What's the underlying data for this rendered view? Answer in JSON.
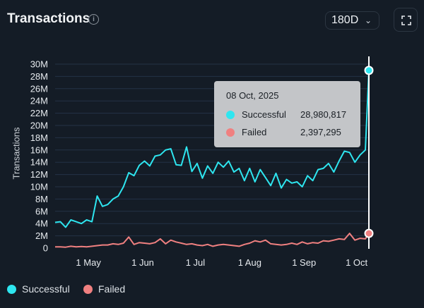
{
  "header": {
    "title": "Transactions",
    "info_icon": "info-icon",
    "range_label": "180D",
    "fullscreen_icon": "fullscreen-icon"
  },
  "tooltip": {
    "date": "08 Oct, 2025",
    "rows": [
      {
        "label": "Successful",
        "value": "28,980,817"
      },
      {
        "label": "Failed",
        "value": "2,397,295"
      }
    ]
  },
  "legend": [
    {
      "label": "Successful",
      "color": "#2ee6f0"
    },
    {
      "label": "Failed",
      "color": "#f08080"
    }
  ],
  "chart_data": {
    "type": "line",
    "title": "Transactions",
    "ylabel": "Transactions",
    "xlabel": "",
    "ylim": [
      0,
      30000000
    ],
    "yticks": [
      "0",
      "2M",
      "4M",
      "6M",
      "8M",
      "10M",
      "12M",
      "14M",
      "16M",
      "18M",
      "20M",
      "22M",
      "24M",
      "26M",
      "28M",
      "30M"
    ],
    "xticks": [
      {
        "label": "1 May",
        "date": "2025-05-01"
      },
      {
        "label": "1 Jun",
        "date": "2025-06-01"
      },
      {
        "label": "1 Jul",
        "date": "2025-07-01"
      },
      {
        "label": "1 Aug",
        "date": "2025-08-01"
      },
      {
        "label": "1 Sep",
        "date": "2025-09-01"
      },
      {
        "label": "1 Oct",
        "date": "2025-10-01"
      }
    ],
    "start_date": "2025-04-12",
    "step_days": 3,
    "end_date": "2025-10-08",
    "grid": true,
    "legend_position": "bottom-left",
    "series": [
      {
        "name": "Successful",
        "color": "#2ee6f0",
        "values_millions": [
          4.2,
          4.3,
          3.4,
          4.6,
          4.3,
          4.0,
          4.6,
          4.3,
          8.5,
          6.8,
          7.1,
          8.0,
          8.5,
          10.0,
          12.3,
          11.8,
          13.5,
          14.2,
          13.4,
          15.0,
          15.2,
          16.0,
          16.2,
          13.6,
          13.5,
          16.5,
          12.5,
          13.8,
          11.4,
          13.4,
          12.2,
          14.0,
          13.2,
          14.2,
          12.4,
          13.0,
          11.0,
          13.0,
          10.8,
          12.8,
          11.5,
          10.2,
          12.2,
          9.8,
          11.2,
          10.6,
          10.8,
          10.0,
          11.8,
          11.0,
          12.8,
          13.0,
          13.8,
          12.4,
          14.2,
          15.8,
          15.6,
          14.0,
          15.2,
          16.0,
          28.98
        ]
      },
      {
        "name": "Failed",
        "color": "#f08080",
        "values_millions": [
          0.2,
          0.2,
          0.15,
          0.3,
          0.2,
          0.25,
          0.2,
          0.3,
          0.4,
          0.5,
          0.5,
          0.7,
          0.6,
          0.8,
          1.8,
          0.6,
          0.9,
          0.8,
          0.7,
          0.9,
          1.5,
          0.7,
          1.3,
          1.0,
          0.8,
          0.6,
          0.7,
          0.5,
          0.4,
          0.6,
          0.3,
          0.5,
          0.6,
          0.5,
          0.4,
          0.3,
          0.6,
          0.8,
          1.2,
          1.0,
          1.3,
          0.7,
          0.6,
          0.5,
          0.6,
          0.8,
          0.6,
          1.0,
          0.7,
          0.9,
          0.8,
          1.2,
          1.1,
          1.3,
          1.5,
          1.4,
          2.4,
          1.3,
          1.6,
          1.5,
          2.4
        ]
      }
    ],
    "highlight": {
      "date": "2025-10-08",
      "Successful": 28980817,
      "Failed": 2397295
    }
  }
}
